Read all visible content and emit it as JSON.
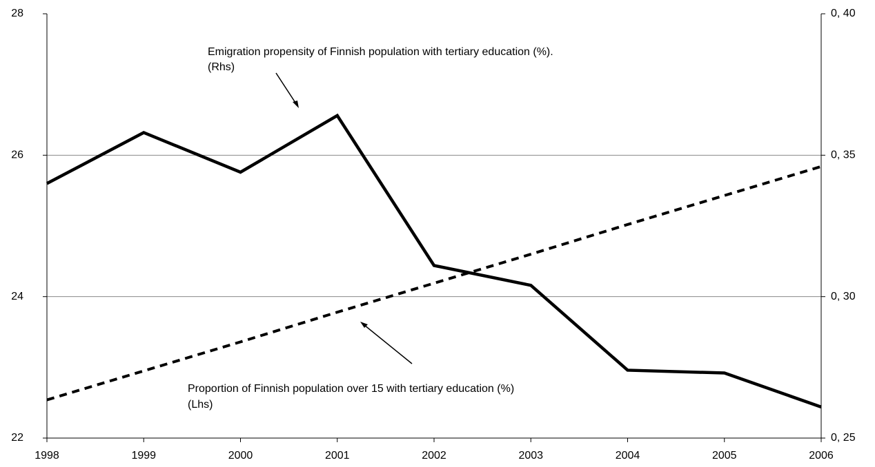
{
  "chart_data": {
    "type": "line",
    "x": [
      1998,
      1999,
      2000,
      2001,
      2002,
      2003,
      2004,
      2005,
      2006
    ],
    "xlim": [
      1998,
      2006
    ],
    "xticks": [
      1998,
      1999,
      2000,
      2001,
      2002,
      2003,
      2004,
      2005,
      2006
    ],
    "ylim": [
      22,
      28
    ],
    "yticks": [
      22,
      24,
      26,
      28
    ],
    "y2lim": [
      0.25,
      0.4
    ],
    "y2ticks": [
      {
        "value": 0.25,
        "label": "0, 25"
      },
      {
        "value": 0.3,
        "label": "0, 30"
      },
      {
        "value": 0.35,
        "label": "0, 35"
      },
      {
        "value": 0.4,
        "label": "0, 40"
      }
    ],
    "grid": true,
    "series": [
      {
        "name": "Emigration propensity of Finnish population with tertiary education (%).",
        "color": "#000000",
        "axis": "y2",
        "dash": false,
        "values": [
          0.34,
          0.358,
          0.344,
          0.364,
          0.311,
          0.304,
          0.274,
          0.273,
          0.261
        ]
      },
      {
        "name": "Proportion of Finnish population over 15 with tertiary education (%)",
        "color": "#000000",
        "axis": "y",
        "dash": true,
        "values": [
          22.54,
          22.95,
          23.36,
          23.78,
          24.19,
          24.6,
          25.02,
          25.43,
          25.84
        ]
      }
    ],
    "annotations": [
      "(Rhs)",
      "(Lhs)"
    ]
  }
}
